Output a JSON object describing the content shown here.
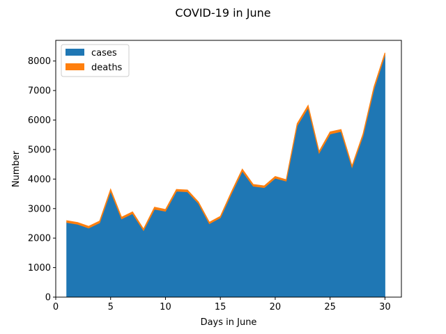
{
  "chart_data": {
    "type": "area",
    "title": "COVID-19 in June",
    "xlabel": "Days in June",
    "ylabel": "Number",
    "xlim": [
      0,
      31.5
    ],
    "ylim": [
      0,
      8700
    ],
    "xticks": [
      0,
      5,
      10,
      15,
      20,
      25,
      30
    ],
    "yticks": [
      0,
      1000,
      2000,
      3000,
      4000,
      5000,
      6000,
      7000,
      8000
    ],
    "x": [
      1,
      2,
      3,
      4,
      5,
      6,
      7,
      8,
      9,
      10,
      11,
      12,
      13,
      14,
      15,
      16,
      17,
      18,
      19,
      20,
      21,
      22,
      23,
      24,
      25,
      26,
      27,
      28,
      29,
      30
    ],
    "stacked": true,
    "legend_position": "upper-left",
    "series": [
      {
        "name": "cases",
        "color": "#1f77b4",
        "values": [
          2530,
          2470,
          2340,
          2520,
          3590,
          2650,
          2830,
          2260,
          2980,
          2910,
          3590,
          3570,
          3180,
          2490,
          2690,
          3500,
          4270,
          3760,
          3710,
          4030,
          3930,
          5810,
          6420,
          4880,
          5530,
          5610,
          4400,
          5460,
          7050,
          8200
        ]
      },
      {
        "name": "deaths",
        "color": "#ff7f0e",
        "values": [
          60,
          60,
          60,
          60,
          70,
          60,
          60,
          50,
          70,
          60,
          60,
          60,
          50,
          50,
          50,
          60,
          70,
          60,
          60,
          60,
          50,
          70,
          80,
          60,
          70,
          70,
          50,
          70,
          80,
          80
        ]
      }
    ]
  }
}
